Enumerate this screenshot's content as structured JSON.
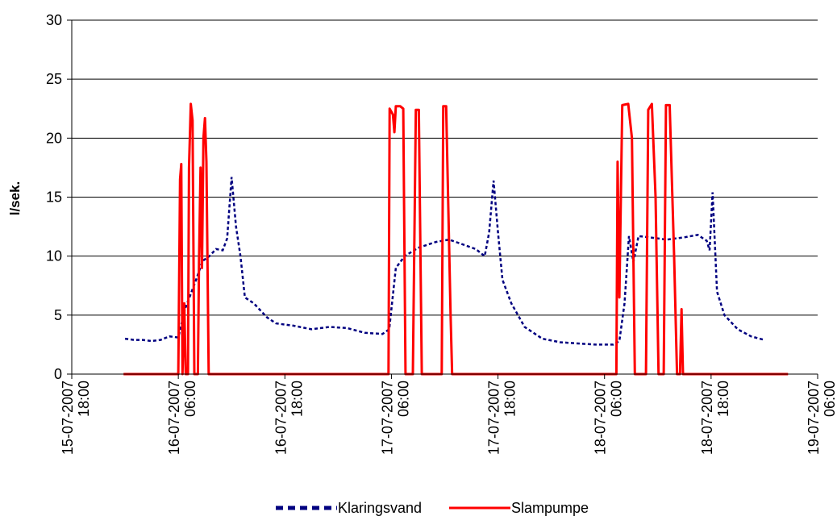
{
  "chart_data": {
    "type": "line",
    "title": "",
    "xlabel": "",
    "ylabel": "l/sek.",
    "ylim": [
      0,
      30
    ],
    "yticks": [
      "0",
      "5",
      "10",
      "15",
      "20",
      "25",
      "30"
    ],
    "xlim": [
      "2007-07-15 18:00",
      "2007-07-19 06:00"
    ],
    "xticks": [
      {
        "date": "15-07-2007",
        "time": "18:00"
      },
      {
        "date": "16-07-2007",
        "time": "06:00"
      },
      {
        "date": "16-07-2007",
        "time": "18:00"
      },
      {
        "date": "17-07-2007",
        "time": "06:00"
      },
      {
        "date": "17-07-2007",
        "time": "18:00"
      },
      {
        "date": "18-07-2007",
        "time": "06:00"
      },
      {
        "date": "18-07-2007",
        "time": "18:00"
      },
      {
        "date": "19-07-2007",
        "time": "06:00"
      }
    ],
    "grid": "horizontal",
    "legend": "bottom",
    "series": [
      {
        "name": "Klaringsvand",
        "color": "#000080",
        "style": "dashed",
        "points": [
          [
            "2007-07-16 00:00",
            3.0
          ],
          [
            "2007-07-16 01:00",
            2.9
          ],
          [
            "2007-07-16 02:00",
            2.9
          ],
          [
            "2007-07-16 03:00",
            2.8
          ],
          [
            "2007-07-16 04:00",
            2.9
          ],
          [
            "2007-07-16 05:00",
            3.2
          ],
          [
            "2007-07-16 06:00",
            3.1
          ],
          [
            "2007-07-16 06:45",
            5.5
          ],
          [
            "2007-07-16 07:30",
            7.0
          ],
          [
            "2007-07-16 08:00",
            8.0
          ],
          [
            "2007-07-16 08:45",
            9.6
          ],
          [
            "2007-07-16 09:30",
            10.0
          ],
          [
            "2007-07-16 10:15",
            10.6
          ],
          [
            "2007-07-16 11:00",
            10.5
          ],
          [
            "2007-07-16 11:30",
            11.5
          ],
          [
            "2007-07-16 12:00",
            16.7
          ],
          [
            "2007-07-16 12:30",
            12.5
          ],
          [
            "2007-07-16 13:00",
            10.0
          ],
          [
            "2007-07-16 13:30",
            6.5
          ],
          [
            "2007-07-16 14:30",
            6.0
          ],
          [
            "2007-07-16 16:00",
            4.8
          ],
          [
            "2007-07-16 17:00",
            4.3
          ],
          [
            "2007-07-16 19:00",
            4.1
          ],
          [
            "2007-07-16 21:00",
            3.8
          ],
          [
            "2007-07-16 23:00",
            4.0
          ],
          [
            "2007-07-17 01:00",
            3.9
          ],
          [
            "2007-07-17 03:00",
            3.5
          ],
          [
            "2007-07-17 05:00",
            3.4
          ],
          [
            "2007-07-17 05:45",
            3.8
          ],
          [
            "2007-07-17 06:30",
            9.0
          ],
          [
            "2007-07-17 07:30",
            10.0
          ],
          [
            "2007-07-17 09:00",
            10.7
          ],
          [
            "2007-07-17 11:00",
            11.2
          ],
          [
            "2007-07-17 12:30",
            11.4
          ],
          [
            "2007-07-17 14:00",
            11.0
          ],
          [
            "2007-07-17 15:30",
            10.6
          ],
          [
            "2007-07-17 16:30",
            10.0
          ],
          [
            "2007-07-17 17:00",
            12.0
          ],
          [
            "2007-07-17 17:30",
            16.4
          ],
          [
            "2007-07-17 18:00",
            12.0
          ],
          [
            "2007-07-17 18:30",
            8.0
          ],
          [
            "2007-07-17 19:30",
            6.0
          ],
          [
            "2007-07-17 21:00",
            4.0
          ],
          [
            "2007-07-17 23:00",
            3.0
          ],
          [
            "2007-07-18 01:00",
            2.7
          ],
          [
            "2007-07-18 03:00",
            2.6
          ],
          [
            "2007-07-18 05:00",
            2.5
          ],
          [
            "2007-07-18 07:00",
            2.5
          ],
          [
            "2007-07-18 07:40",
            2.8
          ],
          [
            "2007-07-18 08:15",
            6.0
          ],
          [
            "2007-07-18 08:45",
            11.7
          ],
          [
            "2007-07-18 09:15",
            9.5
          ],
          [
            "2007-07-18 09:50",
            11.7
          ],
          [
            "2007-07-18 11:00",
            11.6
          ],
          [
            "2007-07-18 13:00",
            11.4
          ],
          [
            "2007-07-18 15:00",
            11.6
          ],
          [
            "2007-07-18 16:30",
            11.8
          ],
          [
            "2007-07-18 17:30",
            11.3
          ],
          [
            "2007-07-18 17:50",
            10.5
          ],
          [
            "2007-07-18 18:10",
            15.4
          ],
          [
            "2007-07-18 18:40",
            7.0
          ],
          [
            "2007-07-18 19:30",
            5.0
          ],
          [
            "2007-07-18 21:00",
            3.8
          ],
          [
            "2007-07-18 22:30",
            3.2
          ],
          [
            "2007-07-19 00:00",
            2.9
          ]
        ]
      },
      {
        "name": "Slampumpe",
        "color": "#ff0000",
        "style": "solid",
        "points": [
          [
            "2007-07-15 23:50",
            0
          ],
          [
            "2007-07-16 06:00",
            0
          ],
          [
            "2007-07-16 06:12",
            16.5
          ],
          [
            "2007-07-16 06:20",
            17.8
          ],
          [
            "2007-07-16 06:28",
            0
          ],
          [
            "2007-07-16 06:40",
            6.0
          ],
          [
            "2007-07-16 06:50",
            0
          ],
          [
            "2007-07-16 07:05",
            0
          ],
          [
            "2007-07-16 07:12",
            17.5
          ],
          [
            "2007-07-16 07:24",
            22.9
          ],
          [
            "2007-07-16 07:36",
            21.5
          ],
          [
            "2007-07-16 07:48",
            0
          ],
          [
            "2007-07-16 08:12",
            0
          ],
          [
            "2007-07-16 08:20",
            9.5
          ],
          [
            "2007-07-16 08:30",
            17.5
          ],
          [
            "2007-07-16 08:40",
            9.0
          ],
          [
            "2007-07-16 08:50",
            20.0
          ],
          [
            "2007-07-16 09:00",
            21.7
          ],
          [
            "2007-07-16 09:10",
            18.0
          ],
          [
            "2007-07-16 09:25",
            0
          ],
          [
            "2007-07-17 05:40",
            0
          ],
          [
            "2007-07-17 05:48",
            22.5
          ],
          [
            "2007-07-17 06:10",
            22.0
          ],
          [
            "2007-07-17 06:20",
            20.5
          ],
          [
            "2007-07-17 06:30",
            22.7
          ],
          [
            "2007-07-17 07:00",
            22.7
          ],
          [
            "2007-07-17 07:20",
            22.5
          ],
          [
            "2007-07-17 07:35",
            0
          ],
          [
            "2007-07-17 08:25",
            0
          ],
          [
            "2007-07-17 08:45",
            22.4
          ],
          [
            "2007-07-17 09:05",
            22.4
          ],
          [
            "2007-07-17 09:25",
            0
          ],
          [
            "2007-07-17 11:40",
            0
          ],
          [
            "2007-07-17 11:50",
            22.7
          ],
          [
            "2007-07-17 12:10",
            22.7
          ],
          [
            "2007-07-17 12:40",
            5.0
          ],
          [
            "2007-07-17 12:50",
            0
          ],
          [
            "2007-07-18 07:20",
            0
          ],
          [
            "2007-07-18 07:28",
            18.0
          ],
          [
            "2007-07-18 07:40",
            6.5
          ],
          [
            "2007-07-18 08:00",
            22.8
          ],
          [
            "2007-07-18 08:40",
            22.9
          ],
          [
            "2007-07-18 09:05",
            20.0
          ],
          [
            "2007-07-18 09:25",
            0
          ],
          [
            "2007-07-18 10:40",
            0
          ],
          [
            "2007-07-18 10:55",
            22.4
          ],
          [
            "2007-07-18 11:20",
            22.9
          ],
          [
            "2007-07-18 11:45",
            15.0
          ],
          [
            "2007-07-18 12:05",
            0
          ],
          [
            "2007-07-18 12:40",
            0
          ],
          [
            "2007-07-18 12:55",
            22.8
          ],
          [
            "2007-07-18 13:20",
            22.8
          ],
          [
            "2007-07-18 13:50",
            10.0
          ],
          [
            "2007-07-18 14:10",
            0
          ],
          [
            "2007-07-18 14:30",
            0
          ],
          [
            "2007-07-18 14:40",
            5.5
          ],
          [
            "2007-07-18 14:50",
            0
          ],
          [
            "2007-07-19 02:40",
            0
          ]
        ]
      }
    ]
  }
}
